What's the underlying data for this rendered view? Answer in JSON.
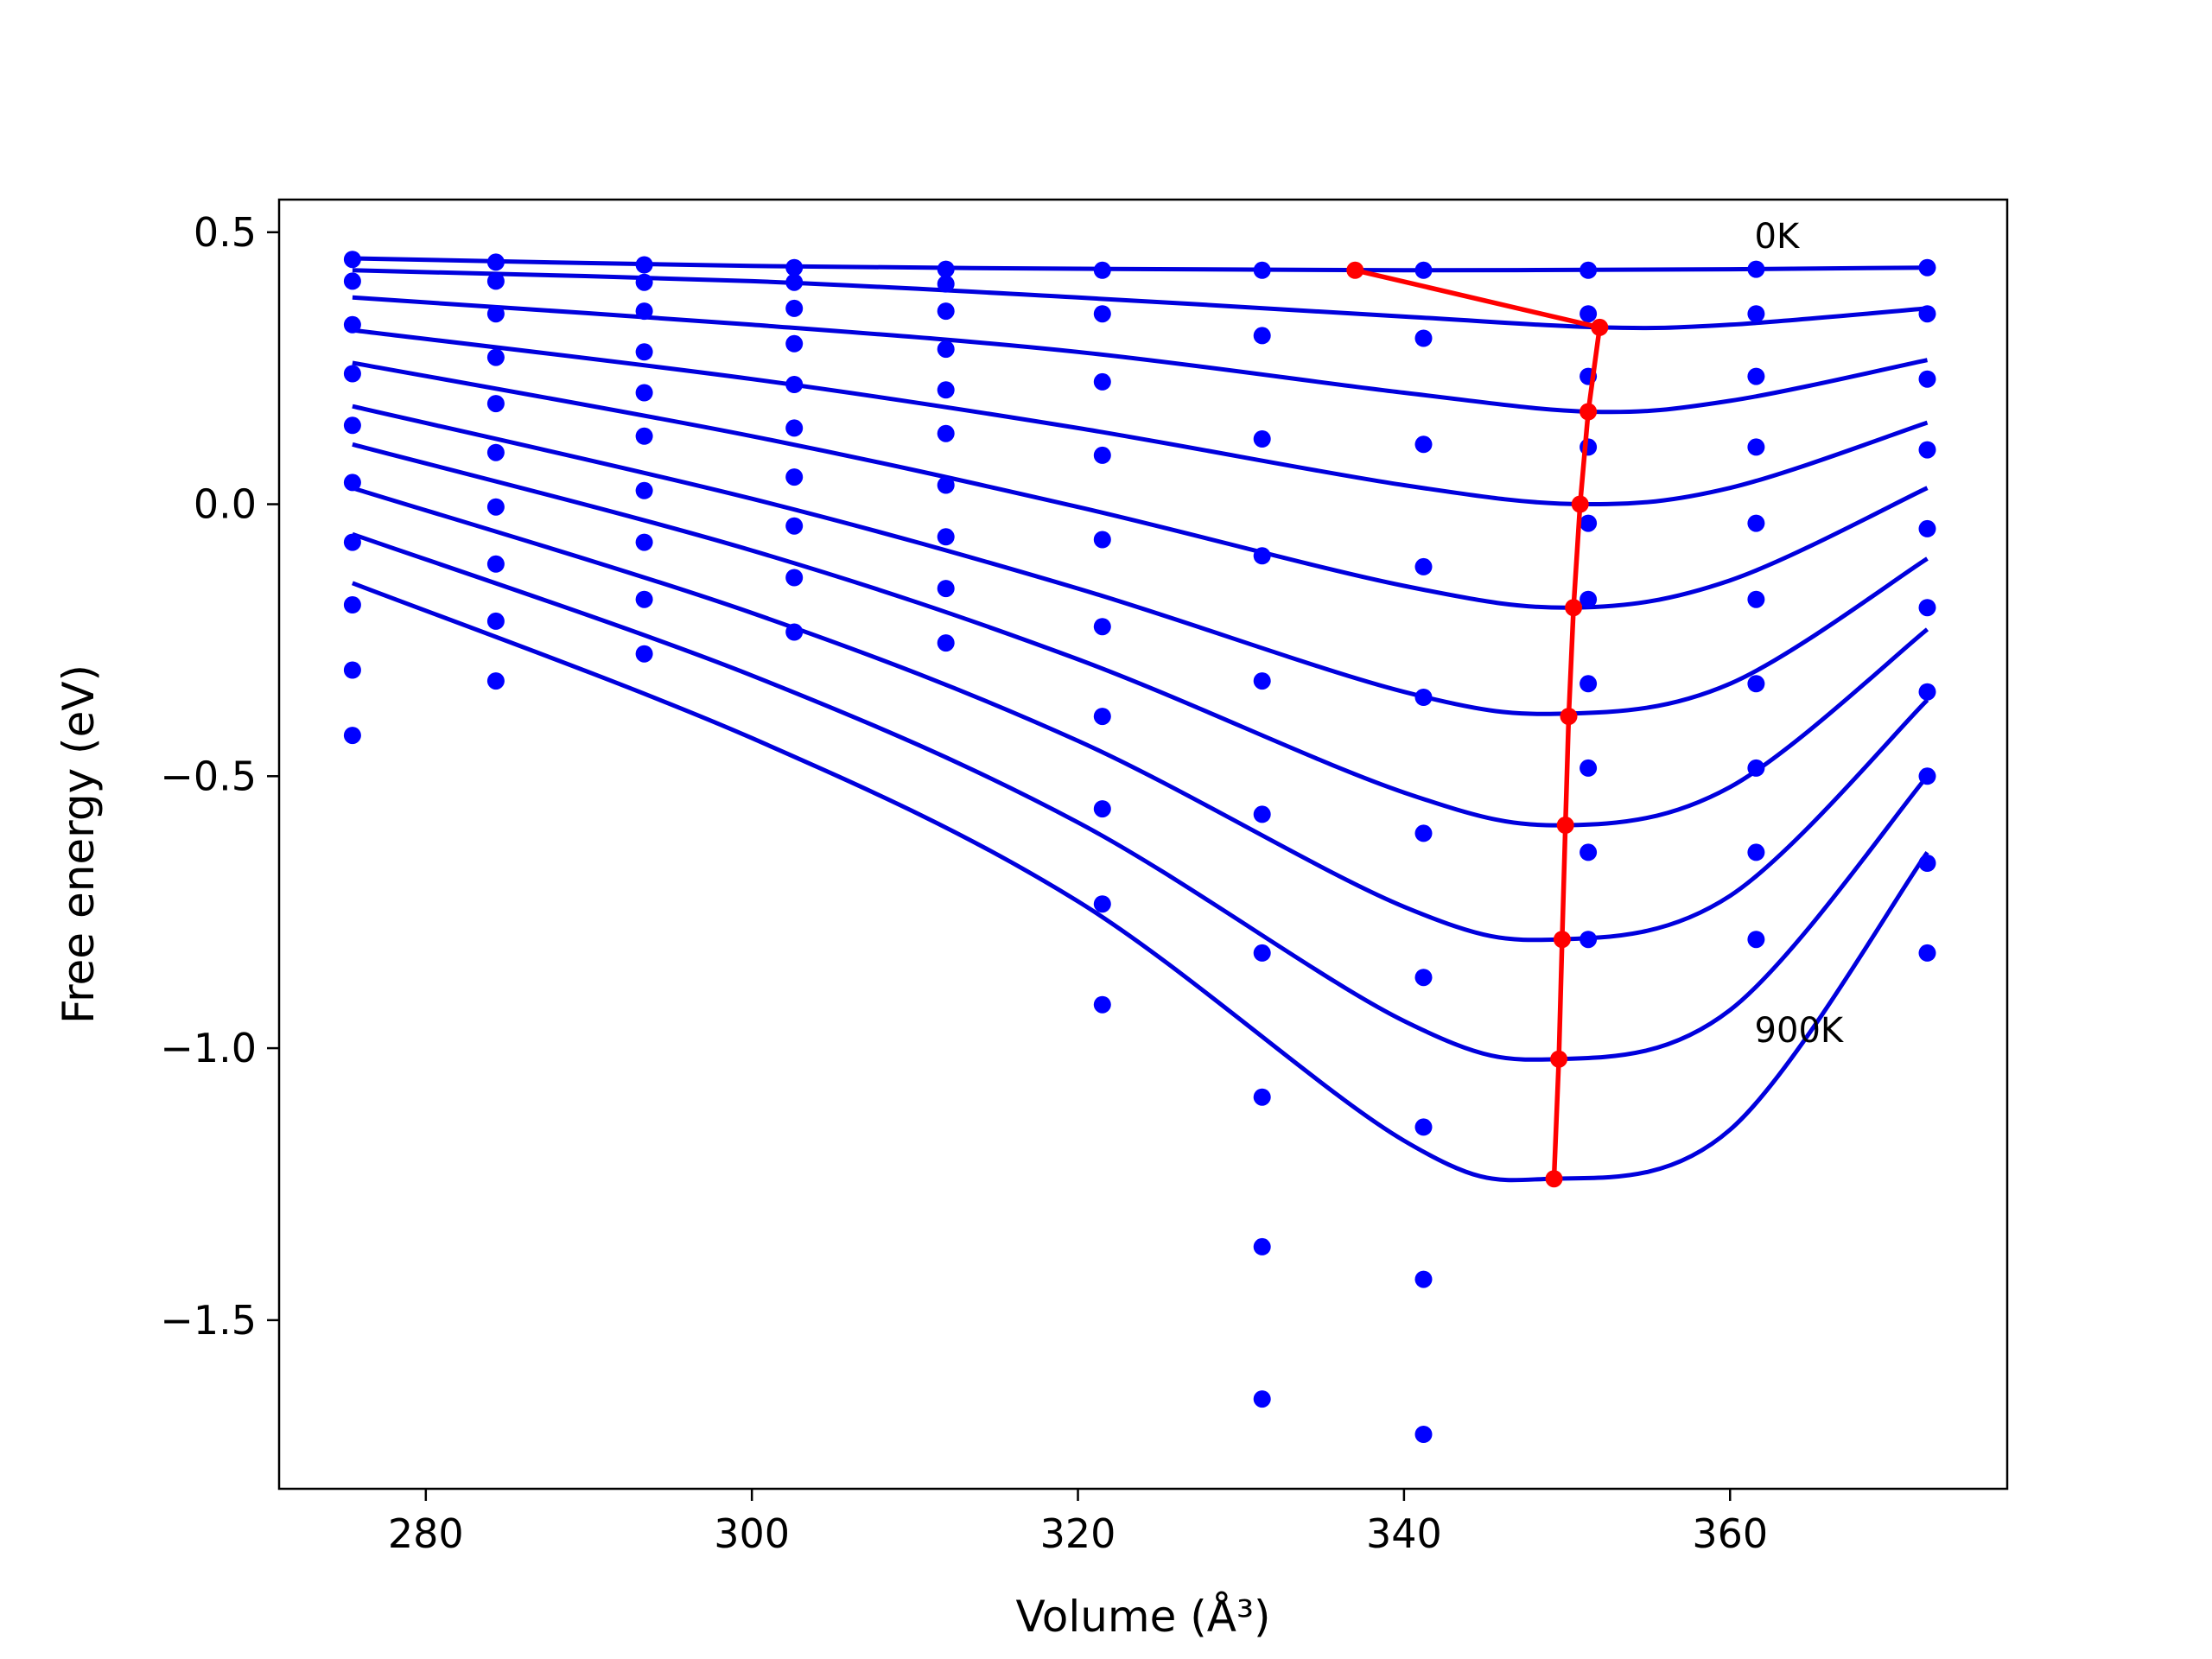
{
  "chart_data": {
    "type": "scatter",
    "xlabel": "Volume (Å³)",
    "ylabel": "Free energy (eV)",
    "xlim": [
      271,
      377
    ],
    "ylim": [
      -1.81,
      0.56
    ],
    "xticks": [
      280,
      300,
      320,
      340,
      360
    ],
    "yticks": [
      0.5,
      0.0,
      -0.5,
      -1.0,
      -1.5
    ],
    "xtick_labels": [
      "280",
      "300",
      "320",
      "340",
      "360"
    ],
    "ytick_labels": [
      "0.5",
      "0.0",
      "−0.5",
      "−1.0",
      "−1.5"
    ],
    "annotations": [
      {
        "text": "0K",
        "x": 361.5,
        "y": 0.49
      },
      {
        "text": "900K",
        "x": 361.5,
        "y": -0.97
      }
    ],
    "grid": false,
    "colors": {
      "points": "#0000ff",
      "fits": "#0000dd",
      "minimum_path": "#ff0000"
    },
    "point_x": [
      275.5,
      284.3,
      293.4,
      302.6,
      311.9,
      321.5,
      331.3,
      341.2,
      351.3,
      361.6,
      372.1
    ],
    "points": [
      [
        0.45,
        0.445,
        0.44,
        0.435,
        0.432,
        0.43,
        0.43,
        0.43,
        0.43,
        0.432,
        0.435
      ],
      [
        0.41,
        0.41,
        0.408,
        0.408,
        0.405,
        null,
        null,
        null,
        null,
        null,
        null
      ],
      [
        0.33,
        0.35,
        0.355,
        0.36,
        0.355,
        0.35,
        0.31,
        0.305,
        0.35,
        0.35,
        0.35
      ],
      [
        0.24,
        0.27,
        0.28,
        0.295,
        0.285,
        0.225,
        0.12,
        0.11,
        0.235,
        0.235,
        0.23
      ],
      [
        0.145,
        0.185,
        0.205,
        0.22,
        0.21,
        0.09,
        -0.095,
        -0.115,
        0.105,
        0.105,
        0.1
      ],
      [
        0.04,
        0.095,
        0.125,
        0.14,
        0.13,
        -0.065,
        -0.325,
        -0.355,
        -0.035,
        -0.035,
        -0.045
      ],
      [
        -0.07,
        -0.005,
        0.025,
        0.05,
        0.035,
        -0.225,
        -0.57,
        -0.605,
        -0.175,
        -0.175,
        -0.19
      ],
      [
        -0.185,
        -0.11,
        -0.07,
        -0.04,
        -0.06,
        -0.39,
        -0.825,
        -0.87,
        -0.33,
        -0.33,
        -0.345
      ],
      [
        -0.305,
        -0.215,
        -0.175,
        -0.135,
        -0.155,
        -0.56,
        -1.09,
        -1.145,
        -0.485,
        -0.485,
        -0.5
      ],
      [
        -0.425,
        -0.325,
        -0.275,
        -0.235,
        -0.255,
        -0.735,
        -1.365,
        -1.425,
        -0.64,
        -0.64,
        -0.66
      ],
      [
        null,
        null,
        null,
        null,
        null,
        -0.92,
        -1.645,
        -1.71,
        -0.8,
        -0.8,
        -0.825
      ]
    ],
    "fit_curves": [
      {
        "x": [
          275.5,
          300,
          320,
          340,
          360,
          372.1
        ],
        "y": [
          0.452,
          0.438,
          0.433,
          0.43,
          0.432,
          0.435
        ]
      },
      {
        "x": [
          275.5,
          300,
          320,
          340,
          352,
          360,
          372.1
        ],
        "y": [
          0.43,
          0.41,
          0.38,
          0.345,
          0.325,
          0.33,
          0.36
        ]
      },
      {
        "x": [
          275.5,
          300,
          320,
          340,
          351.5,
          360,
          372.1
        ],
        "y": [
          0.38,
          0.33,
          0.28,
          0.205,
          0.17,
          0.19,
          0.265
        ]
      },
      {
        "x": [
          275.5,
          300,
          320,
          340,
          351,
          360,
          372.1
        ],
        "y": [
          0.32,
          0.23,
          0.14,
          0.035,
          0.0,
          0.03,
          0.15
        ]
      },
      {
        "x": [
          275.5,
          300,
          320,
          340,
          350.5,
          360,
          372.1
        ],
        "y": [
          0.26,
          0.125,
          -0.005,
          -0.15,
          -0.19,
          -0.14,
          0.03
        ]
      },
      {
        "x": [
          275.5,
          300,
          320,
          340,
          350,
          360,
          372.1
        ],
        "y": [
          0.18,
          0.01,
          -0.155,
          -0.345,
          -0.385,
          -0.33,
          -0.1
        ]
      },
      {
        "x": [
          275.5,
          300,
          320,
          340,
          350,
          360,
          372.1
        ],
        "y": [
          0.11,
          -0.085,
          -0.285,
          -0.53,
          -0.59,
          -0.52,
          -0.23
        ]
      },
      {
        "x": [
          275.5,
          300,
          320,
          340,
          349.5,
          360,
          372.1
        ],
        "y": [
          0.03,
          -0.2,
          -0.435,
          -0.74,
          -0.8,
          -0.72,
          -0.36
        ]
      },
      {
        "x": [
          275.5,
          300,
          320,
          340,
          349.5,
          360,
          372.1
        ],
        "y": [
          -0.055,
          -0.315,
          -0.585,
          -0.95,
          -1.02,
          -0.93,
          -0.5
        ]
      },
      {
        "x": [
          275.5,
          300,
          320,
          340,
          349,
          360,
          372.1
        ],
        "y": [
          -0.145,
          -0.43,
          -0.73,
          -1.17,
          -1.24,
          -1.15,
          -0.64
        ]
      }
    ],
    "minimum_path": {
      "x": [
        337.0,
        352.0,
        351.3,
        350.8,
        350.4,
        350.1,
        349.9,
        349.7,
        349.5,
        349.2
      ],
      "y": [
        0.43,
        0.325,
        0.17,
        0.0,
        -0.19,
        -0.39,
        -0.59,
        -0.8,
        -1.02,
        -1.24
      ]
    }
  }
}
